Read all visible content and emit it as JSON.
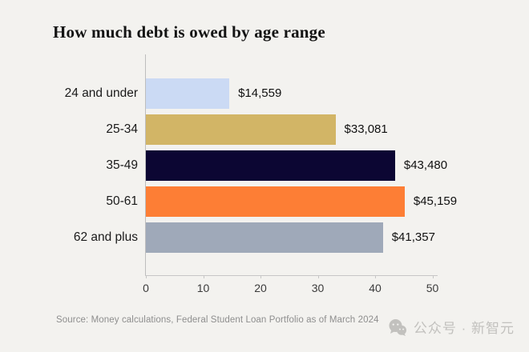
{
  "chart_data": {
    "type": "bar",
    "orientation": "horizontal",
    "title": "How much debt is owed by age range",
    "categories": [
      "24 and under",
      "25-34",
      "35-49",
      "50-61",
      "62 and plus"
    ],
    "values": [
      14559,
      33081,
      43480,
      45159,
      41357
    ],
    "value_labels": [
      "$14,559",
      "$33,081",
      "$43,480",
      "$45,159",
      "$41,357"
    ],
    "bar_colors": [
      "#cbdaf4",
      "#d2b566",
      "#0c0633",
      "#fd7e35",
      "#9fa9b9"
    ],
    "x_ticks": [
      "0",
      "10",
      "20",
      "30",
      "40",
      "50"
    ],
    "x_tick_values": [
      0,
      10,
      20,
      30,
      40,
      50
    ],
    "xlim": [
      0,
      50
    ],
    "grid": false,
    "legend": null,
    "source": "Source: Money calculations, Federal Student Loan Portfolio as of March 2024"
  },
  "watermark": {
    "icon": "wechat-icon",
    "text": "公众号 · 新智元"
  }
}
